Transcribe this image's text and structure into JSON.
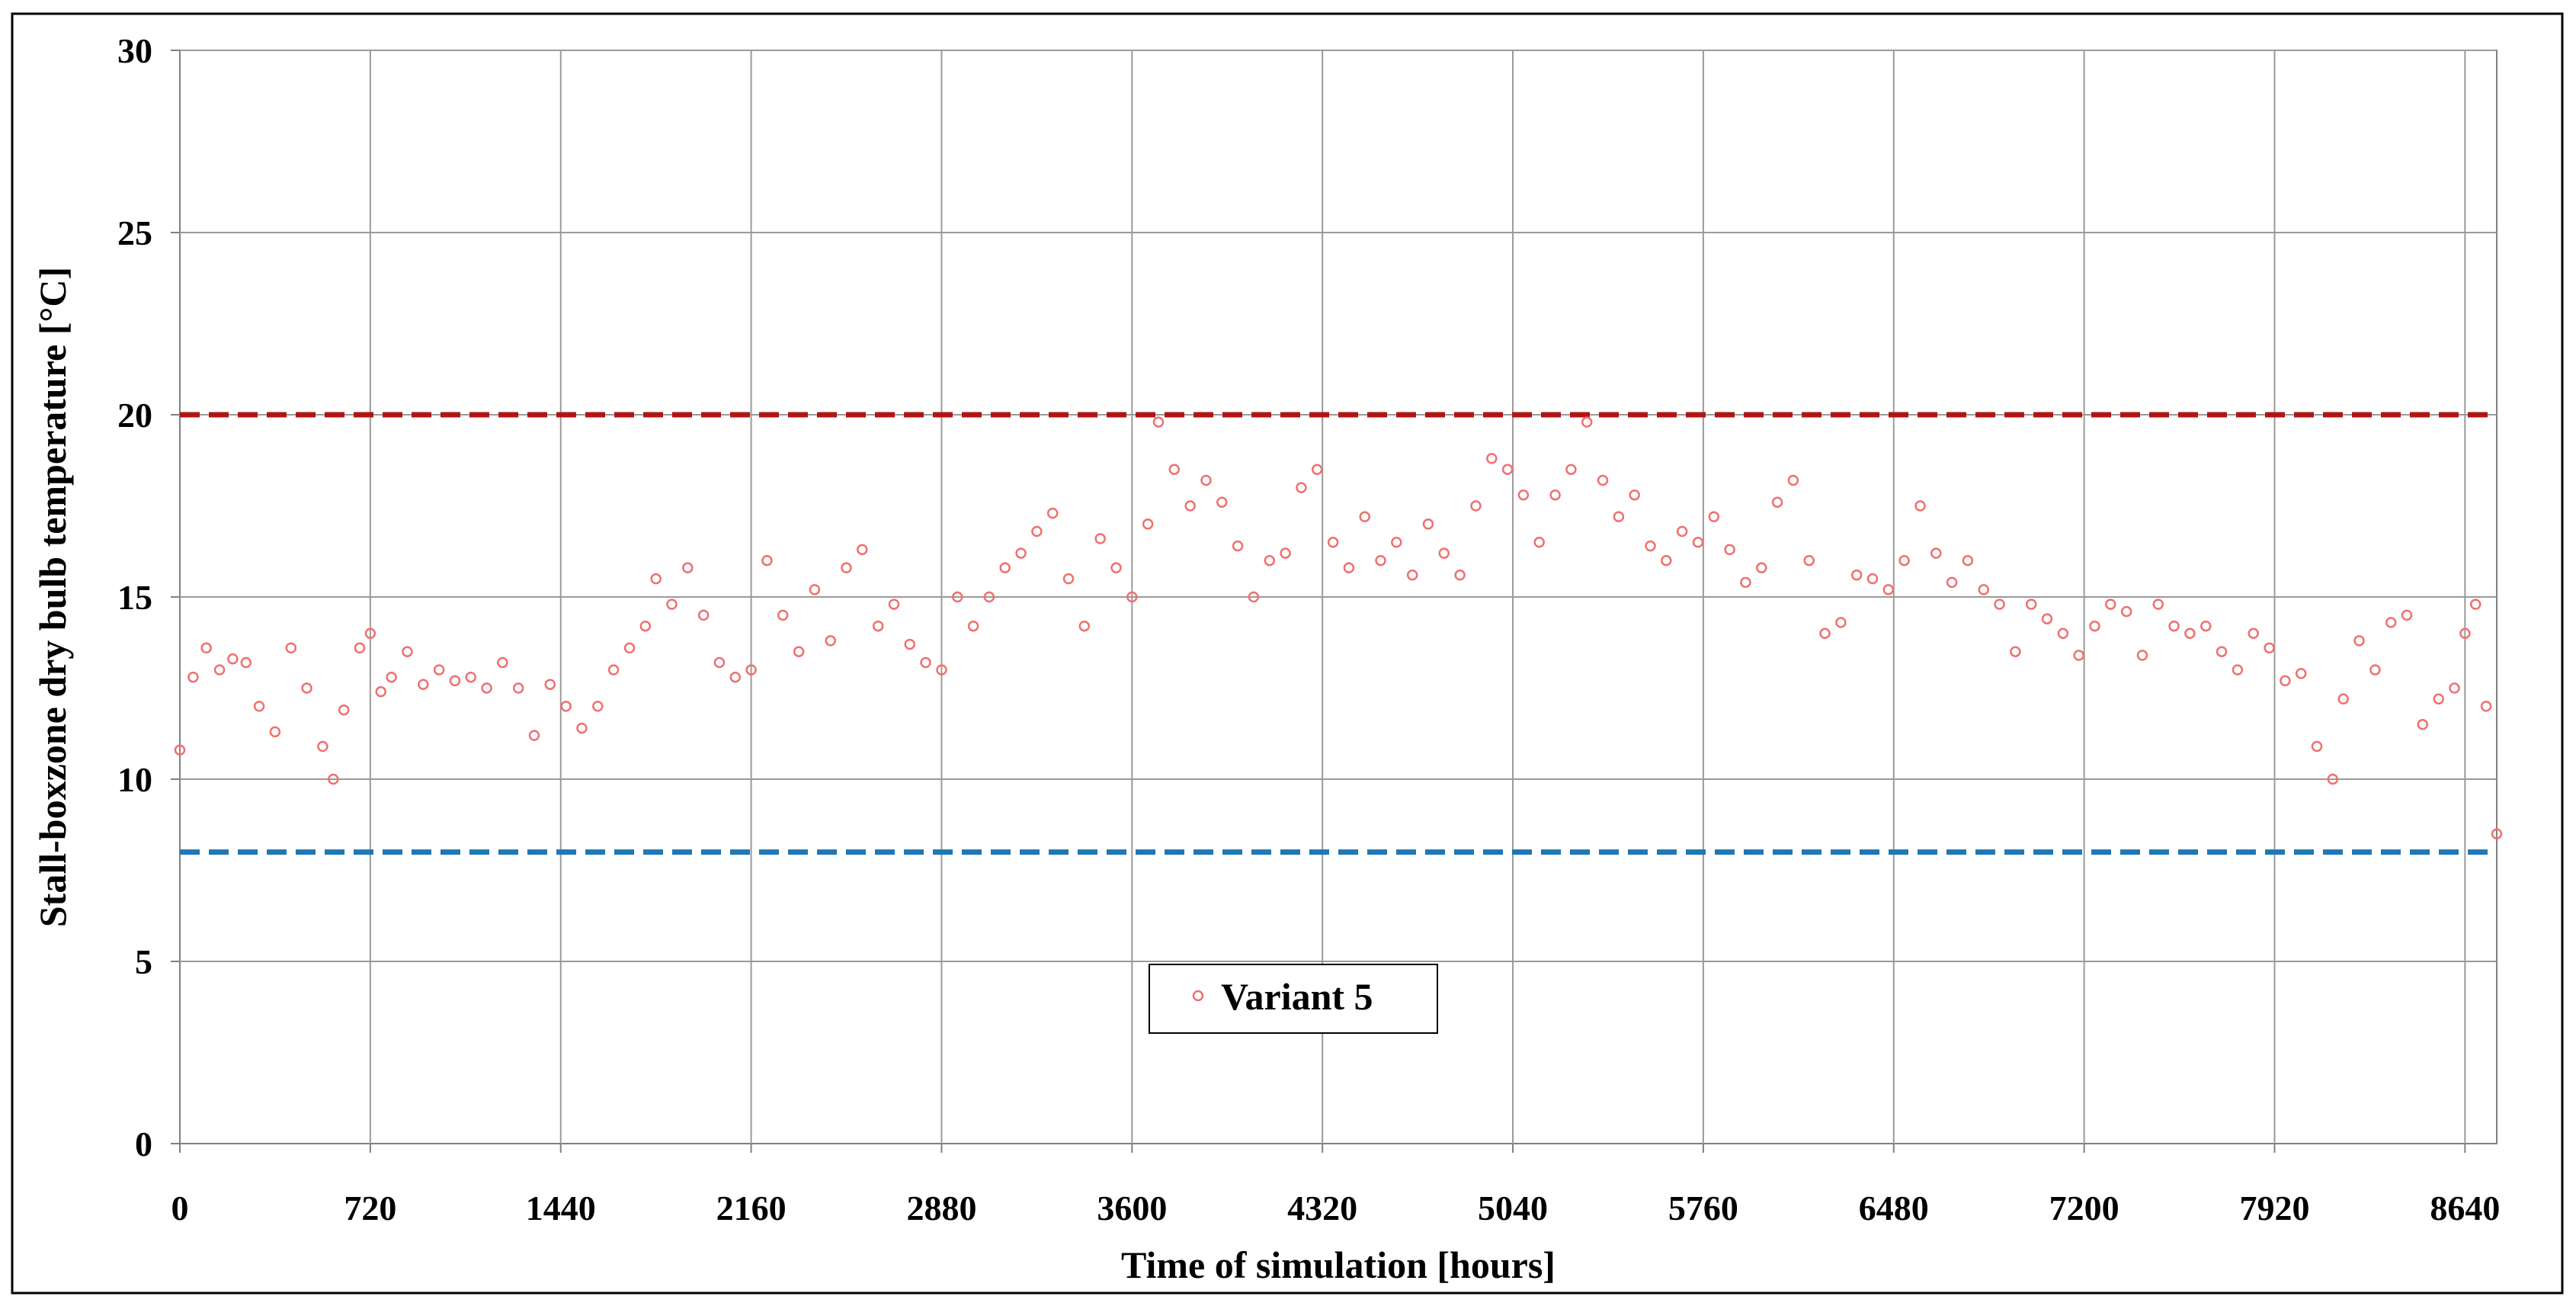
{
  "chart_data": {
    "type": "scatter",
    "title": "",
    "xlabel": "Time of simulation [hours]",
    "ylabel": "Stall-boxzone dry bulb temperature [°C]",
    "xlim": [
      0,
      8760
    ],
    "ylim": [
      0,
      30
    ],
    "x_ticks": [
      "0",
      "720",
      "1440",
      "2160",
      "2880",
      "3600",
      "4320",
      "5040",
      "5760",
      "6480",
      "7200",
      "7920",
      "8640"
    ],
    "y_ticks": [
      "0",
      "5",
      "10",
      "15",
      "20",
      "25",
      "30"
    ],
    "grid": true,
    "legend_position": "lower-center",
    "reference_lines": [
      {
        "y": 20,
        "color": "#b01515",
        "style": "dashed"
      },
      {
        "y": 8,
        "color": "#1f77b4",
        "style": "dashed"
      }
    ],
    "series": [
      {
        "name": "Variant 5",
        "color": "#f07070",
        "marker": "hollow-circle",
        "x": [
          0,
          50,
          100,
          150,
          200,
          250,
          300,
          360,
          420,
          480,
          540,
          580,
          620,
          680,
          720,
          760,
          800,
          860,
          920,
          980,
          1040,
          1100,
          1160,
          1220,
          1280,
          1340,
          1400,
          1460,
          1520,
          1580,
          1640,
          1700,
          1760,
          1800,
          1860,
          1920,
          1980,
          2040,
          2100,
          2160,
          2220,
          2280,
          2340,
          2400,
          2460,
          2520,
          2580,
          2640,
          2700,
          2760,
          2820,
          2880,
          2940,
          3000,
          3060,
          3120,
          3180,
          3240,
          3300,
          3360,
          3420,
          3480,
          3540,
          3600,
          3660,
          3700,
          3760,
          3820,
          3880,
          3940,
          4000,
          4060,
          4120,
          4180,
          4240,
          4300,
          4360,
          4420,
          4480,
          4540,
          4600,
          4660,
          4720,
          4780,
          4840,
          4900,
          4960,
          5020,
          5080,
          5140,
          5200,
          5260,
          5320,
          5380,
          5440,
          5500,
          5560,
          5620,
          5680,
          5740,
          5800,
          5860,
          5920,
          5980,
          6040,
          6100,
          6160,
          6220,
          6280,
          6340,
          6400,
          6460,
          6520,
          6580,
          6640,
          6700,
          6760,
          6820,
          6880,
          6940,
          7000,
          7060,
          7120,
          7180,
          7240,
          7300,
          7360,
          7420,
          7480,
          7540,
          7600,
          7660,
          7720,
          7780,
          7840,
          7900,
          7960,
          8020,
          8080,
          8140,
          8180,
          8240,
          8300,
          8360,
          8420,
          8480,
          8540,
          8600,
          8640,
          8680,
          8720,
          8760
        ],
        "y": [
          10.8,
          12.8,
          13.6,
          13.0,
          13.3,
          13.2,
          12.0,
          11.3,
          13.6,
          12.5,
          10.9,
          10.0,
          11.9,
          13.6,
          14.0,
          12.4,
          12.8,
          13.5,
          12.6,
          13.0,
          12.7,
          12.8,
          12.5,
          13.2,
          12.5,
          11.2,
          12.6,
          12.0,
          11.4,
          12.0,
          13.0,
          13.6,
          14.2,
          15.5,
          14.8,
          15.8,
          14.5,
          13.2,
          12.8,
          13.0,
          16.0,
          14.5,
          13.5,
          15.2,
          13.8,
          15.8,
          16.3,
          14.2,
          14.8,
          13.7,
          13.2,
          13.0,
          15.0,
          14.2,
          15.0,
          15.8,
          16.2,
          16.8,
          17.3,
          15.5,
          14.2,
          16.6,
          15.8,
          15.0,
          17.0,
          19.8,
          18.5,
          17.5,
          18.2,
          17.6,
          16.4,
          15.0,
          16.0,
          16.2,
          18.0,
          18.5,
          16.5,
          15.8,
          17.2,
          16.0,
          16.5,
          15.6,
          17.0,
          16.2,
          15.6,
          17.5,
          18.8,
          18.5,
          17.8,
          16.5,
          17.8,
          18.5,
          19.8,
          18.2,
          17.2,
          17.8,
          16.4,
          16.0,
          16.8,
          16.5,
          17.2,
          16.3,
          15.4,
          15.8,
          17.6,
          18.2,
          16.0,
          14.0,
          14.3,
          15.6,
          15.5,
          15.2,
          16.0,
          17.5,
          16.2,
          15.4,
          16.0,
          15.2,
          14.8,
          13.5,
          14.8,
          14.4,
          14.0,
          13.4,
          14.2,
          14.8,
          14.6,
          13.4,
          14.8,
          14.2,
          14.0,
          14.2,
          13.5,
          13.0,
          14.0,
          13.6,
          12.7,
          12.9,
          10.9,
          10.0,
          12.2,
          13.8,
          13.0,
          14.3,
          14.5,
          11.5,
          12.2,
          12.5,
          14.0,
          14.8,
          12.0,
          8.5
        ]
      }
    ]
  }
}
